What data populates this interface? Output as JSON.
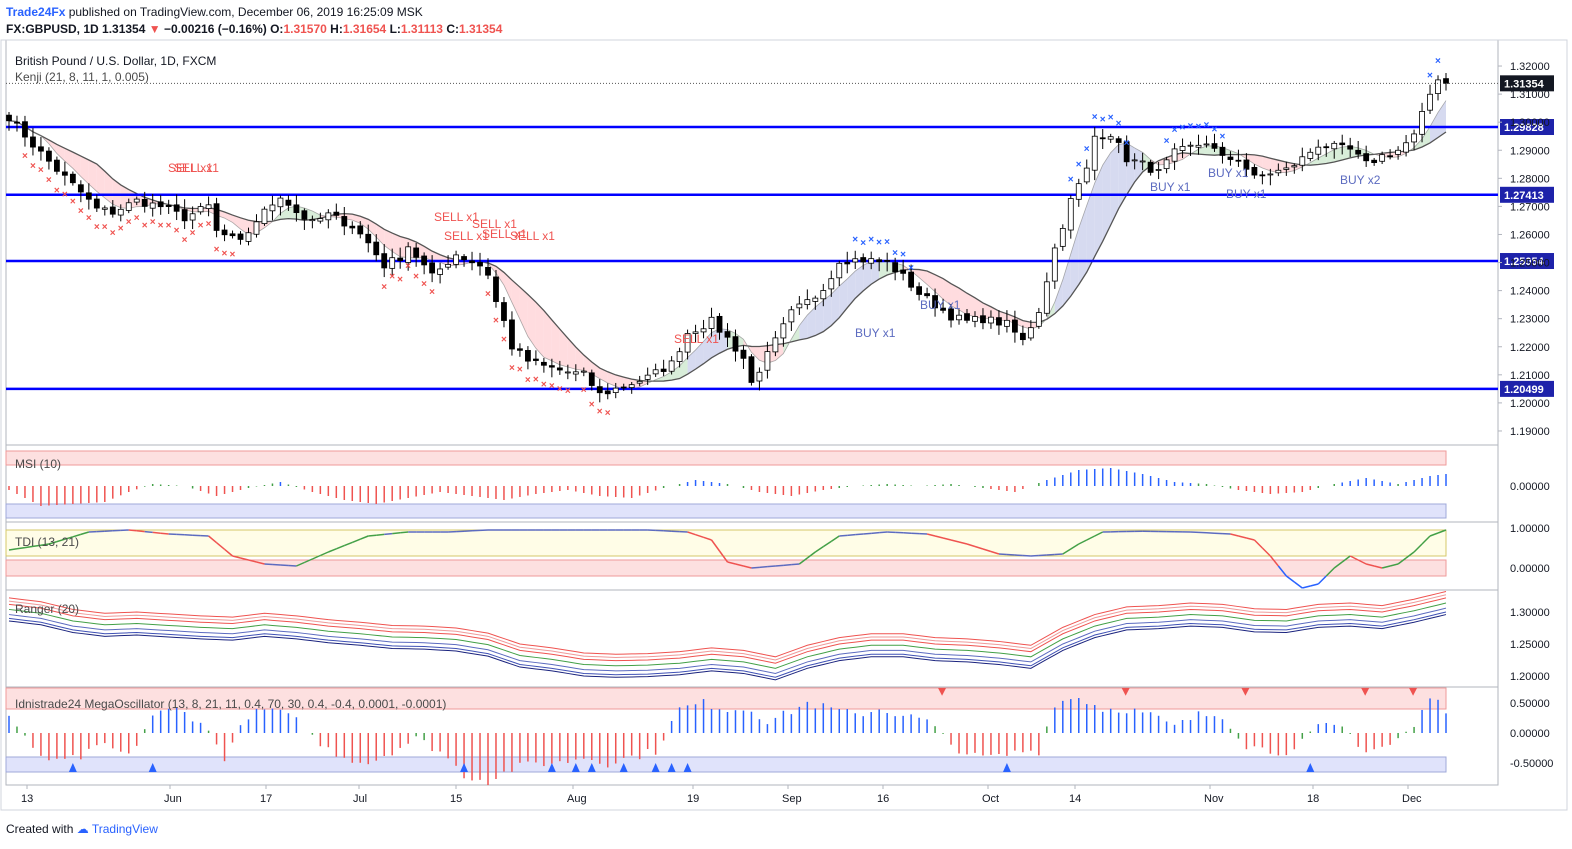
{
  "header": {
    "publisher": "Trade24Fx",
    "published_text": " published on TradingView.com, December 06, 2019 16:25:09 MSK",
    "symbol": "FX:GBPUSD, 1D",
    "last": "1.31354",
    "change": "−0.00216 (−0.16%)",
    "o_label": "O:",
    "o": "1.31570",
    "h_label": "H:",
    "h": "1.31654",
    "l_label": "L:",
    "l": "1.31113",
    "c_label": "C:",
    "c": "1.31354"
  },
  "colors": {
    "candle": "#000000",
    "level_line": "#0000ff",
    "sell": "#ef5350",
    "buy": "#2962ff",
    "cloud_bull": "#c8e6c9",
    "cloud_bear": "#ffcdd2",
    "osc_pos": "#2962ff",
    "osc_neg": "#ef5350"
  },
  "footer": {
    "created_with": "Created with",
    "brand": "TradingView"
  },
  "chart_data": [
    {
      "type": "candlestick",
      "title": "British Pound / U.S. Dollar, 1D, FXCM",
      "indicator": "Kenji (21, 8, 11, 1, 0.005)",
      "ylim": [
        1.185,
        1.325
      ],
      "y_ticks": [
        "1.32000",
        "1.31000",
        "1.30000",
        "1.29000",
        "1.28000",
        "1.27000",
        "1.26000",
        "1.25000",
        "1.24000",
        "1.23000",
        "1.22000",
        "1.21000",
        "1.20000",
        "1.19000"
      ],
      "x_ticks": [
        "13",
        "Jun",
        "17",
        "Jul",
        "15",
        "Aug",
        "19",
        "Sep",
        "16",
        "Oct",
        "14",
        "Nov",
        "18",
        "Dec"
      ],
      "levels": [
        1.29828,
        1.27413,
        1.25054,
        1.20499
      ],
      "level_labels": [
        "1.29828",
        "1.27413",
        "1.25054",
        "1.20499"
      ],
      "last_price_label": "1.31354",
      "signals": [
        {
          "text": "SELL x1"
        },
        {
          "text": "SELL x1"
        },
        {
          "text": "SELL x1"
        },
        {
          "text": "SELL x1"
        },
        {
          "text": "SELL x1"
        },
        {
          "text": "SELL x1"
        },
        {
          "text": "SELL x1"
        },
        {
          "text": "SELL x1"
        },
        {
          "text": "BUY x1"
        },
        {
          "text": "BUY x1"
        },
        {
          "text": "BUY x1"
        },
        {
          "text": "BUY x1"
        },
        {
          "text": "BUY x1"
        },
        {
          "text": "BUY x2"
        }
      ],
      "anchors": [
        [
          0,
          1.302
        ],
        [
          3,
          1.292
        ],
        [
          6,
          1.283
        ],
        [
          9,
          1.275
        ],
        [
          11,
          1.269
        ],
        [
          13,
          1.268
        ],
        [
          16,
          1.272
        ],
        [
          19,
          1.27
        ],
        [
          22,
          1.266
        ],
        [
          25,
          1.27
        ],
        [
          26,
          1.261
        ],
        [
          29,
          1.257
        ],
        [
          31,
          1.265
        ],
        [
          34,
          1.274
        ],
        [
          36,
          1.268
        ],
        [
          38,
          1.264
        ],
        [
          40,
          1.267
        ],
        [
          43,
          1.263
        ],
        [
          45,
          1.257
        ],
        [
          47,
          1.249
        ],
        [
          49,
          1.252
        ],
        [
          50,
          1.256
        ],
        [
          53,
          1.245
        ],
        [
          56,
          1.253
        ],
        [
          59,
          1.249
        ],
        [
          60,
          1.246
        ],
        [
          61,
          1.236
        ],
        [
          62,
          1.229
        ],
        [
          63,
          1.22
        ],
        [
          65,
          1.215
        ],
        [
          67,
          1.213
        ],
        [
          70,
          1.211
        ],
        [
          72,
          1.21
        ],
        [
          74,
          1.203
        ],
        [
          77,
          1.206
        ],
        [
          80,
          1.209
        ],
        [
          83,
          1.214
        ],
        [
          85,
          1.225
        ],
        [
          88,
          1.229
        ],
        [
          90,
          1.223
        ],
        [
          92,
          1.216
        ],
        [
          93,
          1.207
        ],
        [
          95,
          1.217
        ],
        [
          98,
          1.232
        ],
        [
          101,
          1.238
        ],
        [
          103,
          1.245
        ],
        [
          104,
          1.251
        ],
        [
          107,
          1.251
        ],
        [
          110,
          1.25
        ],
        [
          112,
          1.245
        ],
        [
          114,
          1.239
        ],
        [
          116,
          1.235
        ],
        [
          118,
          1.231
        ],
        [
          120,
          1.229
        ],
        [
          122,
          1.23
        ],
        [
          125,
          1.228
        ],
        [
          127,
          1.222
        ],
        [
          129,
          1.233
        ],
        [
          131,
          1.255
        ],
        [
          133,
          1.272
        ],
        [
          135,
          1.283
        ],
        [
          136,
          1.295
        ],
        [
          138,
          1.296
        ],
        [
          140,
          1.287
        ],
        [
          142,
          1.285
        ],
        [
          144,
          1.282
        ],
        [
          146,
          1.289
        ],
        [
          148,
          1.291
        ],
        [
          150,
          1.293
        ],
        [
          152,
          1.287
        ],
        [
          154,
          1.287
        ],
        [
          156,
          1.28
        ],
        [
          158,
          1.282
        ],
        [
          160,
          1.283
        ],
        [
          162,
          1.287
        ],
        [
          164,
          1.292
        ],
        [
          166,
          1.291
        ],
        [
          168,
          1.29
        ],
        [
          170,
          1.285
        ],
        [
          172,
          1.288
        ],
        [
          174,
          1.29
        ],
        [
          176,
          1.295
        ],
        [
          178,
          1.31
        ],
        [
          179,
          1.316
        ],
        [
          180,
          1.314
        ]
      ]
    },
    {
      "type": "bar",
      "title": "MSI (10)",
      "y_ticks": [
        "0.00000"
      ],
      "anchors": [
        [
          0,
          -0.2
        ],
        [
          4,
          -1.0
        ],
        [
          8,
          -0.9
        ],
        [
          12,
          -0.8
        ],
        [
          15,
          -0.3
        ],
        [
          18,
          0.1
        ],
        [
          22,
          0.0
        ],
        [
          26,
          -0.5
        ],
        [
          30,
          -0.1
        ],
        [
          34,
          0.2
        ],
        [
          38,
          -0.3
        ],
        [
          42,
          -0.7
        ],
        [
          46,
          -0.9
        ],
        [
          50,
          -0.6
        ],
        [
          54,
          -0.3
        ],
        [
          58,
          -0.5
        ],
        [
          62,
          -0.7
        ],
        [
          66,
          -0.4
        ],
        [
          70,
          -0.2
        ],
        [
          74,
          -0.5
        ],
        [
          78,
          -0.6
        ],
        [
          82,
          -0.1
        ],
        [
          86,
          0.3
        ],
        [
          90,
          0.1
        ],
        [
          94,
          -0.3
        ],
        [
          98,
          -0.5
        ],
        [
          102,
          -0.2
        ],
        [
          106,
          0.0
        ],
        [
          110,
          0.1
        ],
        [
          114,
          0.0
        ],
        [
          118,
          0.1
        ],
        [
          122,
          -0.1
        ],
        [
          126,
          -0.3
        ],
        [
          130,
          0.3
        ],
        [
          134,
          0.8
        ],
        [
          138,
          0.9
        ],
        [
          142,
          0.6
        ],
        [
          146,
          0.2
        ],
        [
          150,
          0.1
        ],
        [
          154,
          -0.2
        ],
        [
          158,
          -0.4
        ],
        [
          162,
          -0.3
        ],
        [
          166,
          0.1
        ],
        [
          170,
          0.4
        ],
        [
          174,
          0.1
        ],
        [
          178,
          0.5
        ],
        [
          180,
          0.6
        ]
      ]
    },
    {
      "type": "line",
      "title": "TDI (13, 21)",
      "y_ticks": [
        "1.00000",
        "0.00000"
      ],
      "anchors": [
        [
          0,
          0.45
        ],
        [
          5,
          0.6
        ],
        [
          10,
          0.9
        ],
        [
          15,
          0.95
        ],
        [
          20,
          0.85
        ],
        [
          25,
          0.8
        ],
        [
          28,
          0.3
        ],
        [
          32,
          0.1
        ],
        [
          36,
          0.05
        ],
        [
          40,
          0.4
        ],
        [
          45,
          0.8
        ],
        [
          50,
          0.9
        ],
        [
          55,
          0.9
        ],
        [
          60,
          0.95
        ],
        [
          65,
          0.95
        ],
        [
          70,
          0.95
        ],
        [
          75,
          0.95
        ],
        [
          80,
          0.95
        ],
        [
          85,
          0.9
        ],
        [
          88,
          0.7
        ],
        [
          90,
          0.15
        ],
        [
          93,
          0.0
        ],
        [
          96,
          0.05
        ],
        [
          99,
          0.1
        ],
        [
          101,
          0.4
        ],
        [
          104,
          0.8
        ],
        [
          110,
          0.9
        ],
        [
          115,
          0.85
        ],
        [
          120,
          0.6
        ],
        [
          124,
          0.35
        ],
        [
          128,
          0.3
        ],
        [
          132,
          0.35
        ],
        [
          134,
          0.6
        ],
        [
          137,
          0.9
        ],
        [
          142,
          0.92
        ],
        [
          148,
          0.9
        ],
        [
          153,
          0.85
        ],
        [
          156,
          0.7
        ],
        [
          158,
          0.3
        ],
        [
          160,
          -0.2
        ],
        [
          162,
          -0.5
        ],
        [
          164,
          -0.4
        ],
        [
          166,
          0.0
        ],
        [
          168,
          0.3
        ],
        [
          170,
          0.1
        ],
        [
          172,
          0.0
        ],
        [
          174,
          0.1
        ],
        [
          176,
          0.4
        ],
        [
          178,
          0.8
        ],
        [
          180,
          0.95
        ]
      ]
    },
    {
      "type": "line",
      "title": "Ranger (20)",
      "y_ticks": [
        "1.30000",
        "1.25000",
        "1.20000"
      ],
      "anchors": [
        [
          0,
          1.3
        ],
        [
          4,
          1.294
        ],
        [
          8,
          1.282
        ],
        [
          12,
          1.276
        ],
        [
          16,
          1.278
        ],
        [
          20,
          1.275
        ],
        [
          24,
          1.272
        ],
        [
          28,
          1.27
        ],
        [
          32,
          1.276
        ],
        [
          36,
          1.272
        ],
        [
          40,
          1.266
        ],
        [
          44,
          1.262
        ],
        [
          48,
          1.257
        ],
        [
          52,
          1.256
        ],
        [
          56,
          1.253
        ],
        [
          60,
          1.245
        ],
        [
          64,
          1.228
        ],
        [
          68,
          1.222
        ],
        [
          72,
          1.214
        ],
        [
          76,
          1.212
        ],
        [
          80,
          1.213
        ],
        [
          84,
          1.216
        ],
        [
          88,
          1.222
        ],
        [
          92,
          1.218
        ],
        [
          96,
          1.208
        ],
        [
          100,
          1.226
        ],
        [
          104,
          1.238
        ],
        [
          108,
          1.244
        ],
        [
          112,
          1.244
        ],
        [
          116,
          1.238
        ],
        [
          120,
          1.236
        ],
        [
          124,
          1.232
        ],
        [
          128,
          1.226
        ],
        [
          132,
          1.254
        ],
        [
          136,
          1.274
        ],
        [
          140,
          1.286
        ],
        [
          144,
          1.288
        ],
        [
          148,
          1.292
        ],
        [
          152,
          1.29
        ],
        [
          156,
          1.283
        ],
        [
          160,
          1.282
        ],
        [
          164,
          1.29
        ],
        [
          168,
          1.292
        ],
        [
          172,
          1.288
        ],
        [
          176,
          1.298
        ],
        [
          180,
          1.31
        ]
      ]
    },
    {
      "type": "bar",
      "title": "Idnistrade24 MegaOscillator (13, 8, 21, 11, 0.4, 70, 30, 0.4, -0.4, 0.0001, -0.0001)",
      "y_ticks": [
        "0.50000",
        "0.00000",
        "-0.50000"
      ],
      "thresholds": [
        0.7,
        0.4,
        -0.4
      ],
      "anchors": [
        [
          0,
          0.3
        ],
        [
          3,
          -0.3
        ],
        [
          6,
          -0.5
        ],
        [
          9,
          -0.4
        ],
        [
          12,
          -0.2
        ],
        [
          15,
          -0.4
        ],
        [
          18,
          0.3
        ],
        [
          21,
          0.4
        ],
        [
          24,
          0.2
        ],
        [
          27,
          -0.4
        ],
        [
          30,
          0.3
        ],
        [
          33,
          0.4
        ],
        [
          36,
          0.2
        ],
        [
          39,
          -0.2
        ],
        [
          42,
          -0.4
        ],
        [
          45,
          -0.5
        ],
        [
          48,
          -0.3
        ],
        [
          51,
          -0.1
        ],
        [
          54,
          -0.3
        ],
        [
          57,
          -0.7
        ],
        [
          60,
          -0.8
        ],
        [
          63,
          -0.6
        ],
        [
          66,
          -0.5
        ],
        [
          69,
          -0.5
        ],
        [
          72,
          -0.4
        ],
        [
          75,
          -0.5
        ],
        [
          78,
          -0.4
        ],
        [
          81,
          -0.3
        ],
        [
          84,
          0.4
        ],
        [
          87,
          0.5
        ],
        [
          90,
          0.4
        ],
        [
          93,
          0.4
        ],
        [
          95,
          0.2
        ],
        [
          97,
          0.3
        ],
        [
          100,
          0.5
        ],
        [
          103,
          0.4
        ],
        [
          106,
          0.3
        ],
        [
          109,
          0.4
        ],
        [
          112,
          0.3
        ],
        [
          115,
          0.2
        ],
        [
          118,
          -0.2
        ],
        [
          121,
          -0.4
        ],
        [
          124,
          -0.4
        ],
        [
          127,
          -0.3
        ],
        [
          129,
          -0.3
        ],
        [
          131,
          0.5
        ],
        [
          134,
          0.6
        ],
        [
          137,
          0.4
        ],
        [
          140,
          0.4
        ],
        [
          143,
          0.3
        ],
        [
          146,
          0.1
        ],
        [
          149,
          0.3
        ],
        [
          152,
          0.3
        ],
        [
          155,
          -0.2
        ],
        [
          158,
          -0.3
        ],
        [
          161,
          -0.3
        ],
        [
          164,
          0.1
        ],
        [
          167,
          0.1
        ],
        [
          170,
          -0.3
        ],
        [
          173,
          -0.2
        ],
        [
          176,
          0.1
        ],
        [
          178,
          0.6
        ],
        [
          180,
          0.4
        ]
      ]
    }
  ],
  "panes": {
    "main": {
      "price_box_labels": [
        "1.29828",
        "1.27413",
        "1.25054",
        "1.20499",
        "1.31354"
      ]
    }
  }
}
